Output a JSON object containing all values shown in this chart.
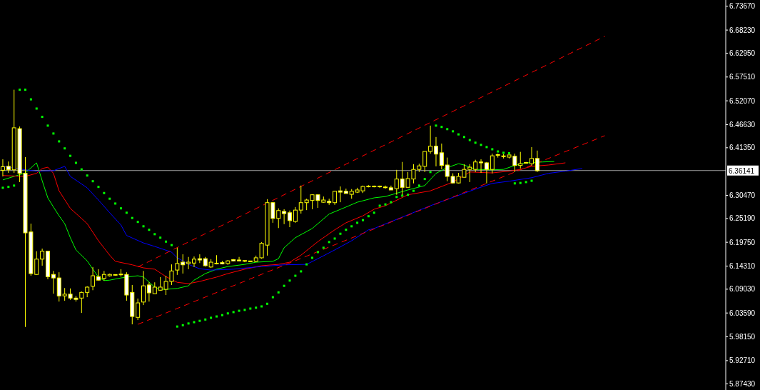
{
  "chart_data": {
    "type": "candlestick",
    "color": "#ffff00",
    "tick_labels": "y",
    "categories": [
      null,
      null,
      null,
      null,
      null,
      null,
      null,
      null,
      null,
      null,
      null,
      null,
      null,
      null,
      null,
      null,
      null,
      null,
      null,
      null,
      null,
      null,
      null,
      null,
      null,
      null,
      null,
      null,
      null,
      null,
      null,
      null,
      null,
      null,
      null,
      null,
      null,
      null,
      null,
      null,
      null,
      null,
      null,
      null,
      null,
      null,
      null,
      null,
      null,
      null,
      null,
      null,
      null,
      null,
      null,
      null,
      null,
      null,
      null,
      null,
      null,
      null,
      null,
      null,
      null,
      null,
      null,
      null,
      null,
      null,
      null,
      null,
      null,
      null,
      null,
      null,
      null,
      null,
      null,
      null,
      null,
      null,
      null,
      null,
      null,
      null,
      null,
      null,
      null,
      null,
      null,
      null,
      null,
      null,
      null,
      null,
      null,
      null,
      null,
      null,
      null,
      null,
      null,
      null,
      null,
      null,
      null,
      null,
      null,
      null,
      null,
      null,
      null,
      null,
      null,
      null,
      null,
      null,
      null,
      null,
      null,
      null,
      null,
      null,
      null,
      null,
      null,
      null,
      null
    ],
    "ohlc": [
      [
        6.362,
        6.387,
        6.348,
        6.37
      ],
      [
        6.371,
        6.382,
        6.356,
        6.363
      ],
      [
        6.363,
        6.546,
        6.356,
        6.459
      ],
      [
        6.457,
        6.462,
        6.335,
        6.355
      ],
      [
        6.355,
        6.392,
        6.004,
        6.219
      ],
      [
        6.221,
        6.24,
        6.121,
        6.126
      ],
      [
        6.124,
        6.177,
        6.123,
        6.159
      ],
      [
        6.159,
        6.183,
        6.144,
        6.177
      ],
      [
        6.177,
        6.177,
        6.113,
        6.119
      ],
      [
        6.124,
        6.132,
        6.08,
        6.116
      ],
      [
        6.116,
        6.129,
        6.062,
        6.075
      ],
      [
        6.075,
        6.093,
        6.064,
        6.079
      ],
      [
        6.079,
        6.092,
        6.066,
        6.07
      ],
      [
        6.07,
        6.075,
        6.062,
        6.067
      ],
      [
        6.07,
        6.085,
        6.036,
        6.083
      ],
      [
        6.083,
        6.097,
        6.072,
        6.095
      ],
      [
        6.097,
        6.141,
        6.088,
        6.121
      ],
      [
        6.119,
        6.136,
        6.11,
        6.111
      ],
      [
        6.115,
        6.132,
        6.11,
        6.124
      ],
      [
        6.121,
        6.126,
        6.119,
        6.124
      ],
      [
        6.123,
        6.124,
        6.121,
        6.123
      ],
      [
        6.124,
        6.136,
        6.119,
        6.124
      ],
      [
        6.124,
        6.129,
        6.064,
        6.077
      ],
      [
        6.083,
        6.1,
        6.01,
        6.028
      ],
      [
        6.026,
        6.069,
        6.02,
        6.059
      ],
      [
        6.061,
        6.132,
        6.054,
        6.098
      ],
      [
        6.1,
        6.106,
        6.062,
        6.082
      ],
      [
        6.08,
        6.106,
        6.08,
        6.095
      ],
      [
        6.088,
        6.118,
        6.087,
        6.095
      ],
      [
        6.09,
        6.121,
        6.077,
        6.108
      ],
      [
        6.108,
        6.147,
        6.1,
        6.132
      ],
      [
        6.134,
        6.185,
        6.123,
        6.149
      ],
      [
        6.152,
        6.17,
        6.126,
        6.146
      ],
      [
        6.149,
        6.164,
        6.136,
        6.152
      ],
      [
        6.15,
        6.165,
        6.141,
        6.159
      ],
      [
        6.16,
        6.17,
        6.15,
        6.157
      ],
      [
        6.16,
        6.164,
        6.142,
        6.144
      ],
      [
        6.141,
        6.159,
        6.139,
        6.152
      ],
      [
        6.149,
        6.168,
        6.147,
        6.149
      ],
      [
        6.151,
        6.155,
        6.147,
        6.148
      ],
      [
        6.149,
        6.157,
        6.146,
        6.155
      ],
      [
        6.158,
        6.159,
        6.154,
        6.155
      ],
      [
        6.157,
        6.164,
        6.154,
        6.155
      ],
      [
        6.155,
        6.156,
        6.152,
        6.155
      ],
      [
        6.154,
        6.155,
        6.152,
        6.154
      ],
      [
        6.154,
        6.167,
        6.152,
        6.162
      ],
      [
        6.162,
        6.198,
        6.16,
        6.195
      ],
      [
        6.191,
        6.296,
        6.167,
        6.288
      ],
      [
        6.288,
        6.289,
        6.242,
        6.252
      ],
      [
        6.252,
        6.275,
        6.23,
        6.27
      ],
      [
        6.268,
        6.273,
        6.239,
        6.263
      ],
      [
        6.265,
        6.27,
        6.232,
        6.247
      ],
      [
        6.245,
        6.278,
        6.242,
        6.271
      ],
      [
        6.271,
        6.327,
        6.263,
        6.288
      ],
      [
        6.288,
        6.297,
        6.271,
        6.294
      ],
      [
        6.293,
        6.307,
        6.273,
        6.306
      ],
      [
        6.306,
        6.307,
        6.276,
        6.293
      ],
      [
        6.289,
        6.302,
        6.288,
        6.294
      ],
      [
        6.291,
        6.297,
        6.283,
        6.288
      ],
      [
        6.288,
        6.315,
        6.283,
        6.314
      ],
      [
        6.315,
        6.325,
        6.289,
        6.312
      ],
      [
        6.314,
        6.32,
        6.309,
        6.309
      ],
      [
        6.307,
        6.319,
        6.297,
        6.314
      ],
      [
        6.312,
        6.322,
        6.31,
        6.317
      ],
      [
        6.315,
        6.327,
        6.31,
        6.325
      ],
      [
        6.325,
        6.328,
        6.323,
        6.325
      ],
      [
        6.325,
        6.327,
        6.323,
        6.325
      ],
      [
        6.325,
        6.327,
        6.322,
        6.325
      ],
      [
        6.323,
        6.327,
        6.32,
        6.323
      ],
      [
        6.322,
        6.327,
        6.317,
        6.317
      ],
      [
        6.32,
        6.363,
        6.306,
        6.342
      ],
      [
        6.342,
        6.381,
        6.306,
        6.323
      ],
      [
        6.323,
        6.358,
        6.323,
        6.343
      ],
      [
        6.342,
        6.376,
        6.332,
        6.364
      ],
      [
        6.364,
        6.377,
        6.358,
        6.372
      ],
      [
        6.371,
        6.405,
        6.358,
        6.405
      ],
      [
        6.405,
        6.464,
        6.4,
        6.417
      ],
      [
        6.417,
        6.438,
        6.371,
        6.399
      ],
      [
        6.402,
        6.423,
        6.364,
        6.373
      ],
      [
        6.374,
        6.391,
        6.337,
        6.348
      ],
      [
        6.348,
        6.355,
        6.332,
        6.333
      ],
      [
        6.333,
        6.356,
        6.332,
        6.348
      ],
      [
        6.346,
        6.376,
        6.346,
        6.364
      ],
      [
        6.364,
        6.376,
        6.335,
        6.369
      ],
      [
        6.364,
        6.386,
        6.358,
        6.381
      ],
      [
        6.381,
        6.387,
        6.356,
        6.379
      ],
      [
        6.379,
        6.381,
        6.332,
        6.364
      ],
      [
        6.364,
        6.4,
        6.355,
        6.395
      ],
      [
        6.397,
        6.4,
        6.391,
        6.397
      ],
      [
        6.394,
        6.399,
        6.389,
        6.394
      ],
      [
        6.392,
        6.397,
        6.389,
        6.397
      ],
      [
        6.394,
        6.4,
        6.358,
        6.373
      ],
      [
        6.373,
        6.404,
        6.366,
        6.377
      ],
      [
        6.379,
        6.381,
        6.377,
        6.379
      ],
      [
        6.377,
        6.415,
        6.373,
        6.389
      ],
      [
        6.389,
        6.407,
        6.358,
        6.361
      ],
      null,
      null,
      null,
      null,
      null,
      null,
      null,
      null,
      null,
      null,
      null,
      null,
      null,
      null,
      null,
      null,
      null,
      null,
      null,
      null,
      null,
      null,
      null,
      null,
      null,
      null,
      null,
      null,
      null,
      null,
      null,
      null,
      null
    ],
    "series": [
      {
        "type": "line",
        "color": "#00ff00",
        "values": [
          6.34,
          null,
          null,
          null,
          6.356,
          null,
          6.379,
          6.338,
          6.299,
          6.278,
          6.258,
          6.24,
          6.208,
          6.18,
          null,
          6.155,
          6.136,
          6.118,
          6.11,
          6.111,
          null,
          6.116,
          6.118,
          null,
          6.121,
          6.118,
          null,
          6.095,
          6.09,
          6.09,
          null,
          6.092,
          null,
          6.098,
          6.111,
          null,
          6.126,
          null,
          6.136,
          null,
          6.142,
          null,
          null,
          6.147,
          null,
          6.152,
          null,
          null,
          6.154,
          6.16,
          6.185,
          null,
          6.208,
          null,
          null,
          6.229,
          null,
          null,
          6.262,
          null,
          null,
          6.278,
          null,
          6.289,
          null,
          null,
          6.299,
          null,
          6.302,
          null,
          null,
          null,
          6.317,
          null,
          null,
          6.327,
          null,
          6.355,
          null,
          6.368,
          null,
          6.377,
          6.374,
          null,
          6.364,
          null,
          null,
          6.363,
          null,
          6.364,
          null,
          6.373,
          null,
          6.379,
          null,
          null,
          6.381,
          null,
          6.382,
          null,
          null,
          null,
          null,
          null,
          null,
          null,
          null,
          null,
          null,
          null,
          null,
          null,
          null,
          null,
          null,
          null,
          null,
          null,
          null,
          null,
          null,
          null,
          null,
          null,
          null,
          null,
          null,
          null,
          null
        ]
      },
      {
        "type": "line",
        "color": "#ff0000",
        "values": [
          6.35,
          null,
          null,
          null,
          6.348,
          null,
          6.355,
          6.366,
          6.369,
          6.355,
          6.315,
          null,
          6.275,
          null,
          null,
          6.24,
          null,
          6.201,
          null,
          6.168,
          6.154,
          null,
          null,
          6.146,
          null,
          6.139,
          null,
          6.136,
          null,
          6.119,
          null,
          6.106,
          null,
          6.103,
          null,
          6.108,
          null,
          null,
          6.118,
          null,
          6.126,
          null,
          null,
          6.136,
          null,
          null,
          6.144,
          null,
          null,
          6.147,
          null,
          6.152,
          null,
          6.168,
          null,
          null,
          6.199,
          null,
          null,
          6.226,
          null,
          6.242,
          null,
          null,
          6.258,
          null,
          6.273,
          null,
          6.281,
          null,
          null,
          null,
          6.306,
          null,
          null,
          null,
          6.315,
          null,
          null,
          null,
          6.335,
          null,
          6.35,
          6.358,
          null,
          null,
          null,
          6.356,
          null,
          null,
          6.36,
          null,
          6.364,
          null,
          6.371,
          null,
          null,
          6.374,
          null,
          null,
          6.379,
          null,
          null,
          null,
          null,
          null,
          null,
          null,
          null,
          null,
          null,
          null,
          null,
          null,
          null,
          null,
          null,
          null,
          null,
          null,
          null,
          null,
          null,
          null,
          null,
          null,
          null,
          null,
          null
        ]
      },
      {
        "type": "line",
        "color": "#0000ff",
        "values": [
          6.371,
          null,
          null,
          null,
          6.363,
          null,
          6.36,
          null,
          null,
          6.361,
          null,
          6.371,
          6.348,
          null,
          null,
          6.322,
          null,
          6.294,
          null,
          6.265,
          null,
          6.237,
          6.213,
          null,
          null,
          6.196,
          null,
          6.188,
          null,
          null,
          6.175,
          6.162,
          6.155,
          6.147,
          null,
          6.137,
          null,
          6.134,
          null,
          null,
          null,
          6.136,
          null,
          null,
          null,
          6.141,
          null,
          null,
          null,
          null,
          6.146,
          null,
          null,
          null,
          6.147,
          null,
          6.16,
          null,
          null,
          6.18,
          null,
          null,
          6.201,
          null,
          null,
          6.226,
          6.229,
          null,
          null,
          null,
          null,
          null,
          null,
          null,
          null,
          null,
          6.281,
          null,
          null,
          null,
          null,
          null,
          null,
          null,
          6.319,
          null,
          null,
          6.332,
          null,
          null,
          6.337,
          null,
          null,
          null,
          6.345,
          null,
          null,
          6.355,
          null,
          null,
          6.36,
          null,
          null,
          6.366,
          null,
          null,
          null,
          null,
          null,
          null,
          null,
          null,
          null,
          null,
          null,
          null,
          null,
          null,
          null,
          null,
          null,
          null,
          null,
          null,
          null,
          null,
          null,
          null,
          null
        ]
      },
      {
        "type": "scatter",
        "color": "#00ff00",
        "marker": "square",
        "values": [
          6.322,
          6.324,
          6.327,
          6.546,
          6.546,
          6.524,
          6.503,
          6.484,
          6.464,
          6.446,
          6.428,
          6.412,
          6.395,
          6.379,
          6.364,
          6.35,
          6.337,
          6.324,
          6.31,
          6.297,
          6.286,
          6.275,
          6.265,
          6.253,
          6.244,
          6.234,
          6.226,
          6.216,
          6.208,
          6.199,
          6.191,
          6.005,
          6.008,
          6.012,
          6.015,
          6.018,
          6.021,
          6.025,
          6.028,
          6.031,
          6.035,
          6.038,
          6.041,
          6.043,
          6.046,
          6.048,
          6.051,
          6.057,
          6.072,
          6.083,
          6.098,
          6.11,
          6.121,
          6.131,
          6.147,
          6.162,
          6.175,
          6.185,
          6.198,
          6.206,
          6.217,
          6.226,
          6.234,
          6.242,
          6.248,
          6.257,
          6.265,
          6.281,
          6.284,
          6.289,
          6.301,
          6.304,
          6.306,
          6.315,
          6.327,
          6.342,
          6.358,
          6.464,
          6.461,
          6.456,
          6.451,
          6.444,
          6.438,
          6.431,
          6.425,
          6.42,
          6.415,
          6.41,
          6.405,
          6.402,
          6.401,
          6.332,
          6.333,
          6.335,
          6.338,
          null,
          null,
          null,
          null,
          null,
          null,
          null,
          null,
          null,
          null,
          null,
          null,
          null,
          null,
          null,
          null,
          null,
          null,
          null,
          null,
          null,
          null,
          null,
          null,
          null,
          null,
          null,
          null,
          null,
          null,
          null,
          null,
          null,
          null
        ]
      },
      {
        "type": "line",
        "color": "#ff0000",
        "line_style": "dashed",
        "values": [
          null,
          null,
          null,
          null,
          null,
          null,
          null,
          null,
          null,
          null,
          null,
          null,
          null,
          null,
          null,
          null,
          null,
          null,
          null,
          null,
          null,
          null,
          null,
          null,
          6.141,
          null,
          null,
          null,
          null,
          null,
          null,
          null,
          null,
          null,
          null,
          null,
          null,
          null,
          null,
          null,
          null,
          null,
          null,
          null,
          null,
          null,
          null,
          null,
          null,
          null,
          null,
          null,
          null,
          null,
          null,
          null,
          null,
          null,
          null,
          null,
          null,
          null,
          null,
          null,
          null,
          null,
          null,
          null,
          null,
          null,
          null,
          null,
          null,
          null,
          null,
          null,
          null,
          null,
          null,
          null,
          null,
          null,
          null,
          null,
          null,
          null,
          null,
          null,
          null,
          null,
          null,
          null,
          null,
          null,
          null,
          null,
          null,
          null,
          null,
          null,
          null,
          null,
          null,
          null,
          null,
          null,
          null,
          6.668,
          null,
          null,
          null,
          null,
          null,
          null,
          null,
          null,
          null,
          null,
          null,
          null,
          null,
          null,
          null,
          null,
          null,
          null,
          null,
          null,
          null
        ]
      },
      {
        "type": "line",
        "color": "#ff0000",
        "line_style": "dashed",
        "values": [
          null,
          null,
          null,
          null,
          null,
          null,
          null,
          null,
          null,
          null,
          null,
          null,
          null,
          null,
          null,
          null,
          null,
          null,
          null,
          null,
          null,
          null,
          null,
          null,
          6.01,
          null,
          null,
          null,
          null,
          null,
          null,
          null,
          null,
          null,
          null,
          null,
          null,
          null,
          null,
          null,
          null,
          null,
          null,
          null,
          null,
          null,
          null,
          null,
          null,
          null,
          null,
          null,
          null,
          null,
          null,
          null,
          null,
          null,
          null,
          null,
          null,
          null,
          null,
          null,
          null,
          null,
          null,
          null,
          null,
          null,
          null,
          null,
          null,
          null,
          null,
          null,
          null,
          null,
          null,
          null,
          null,
          null,
          null,
          null,
          null,
          null,
          null,
          null,
          null,
          null,
          null,
          null,
          null,
          null,
          null,
          null,
          null,
          null,
          null,
          null,
          null,
          null,
          null,
          null,
          null,
          null,
          null,
          6.441,
          null,
          null,
          null,
          null,
          null,
          null,
          null,
          null,
          null,
          null,
          null,
          null,
          null,
          null,
          null,
          null,
          null,
          null,
          null,
          null,
          null
        ]
      }
    ],
    "ylim": [
      5.86,
      6.751
    ],
    "yticks": [
      {
        "value": 5.8743,
        "label": "5.87430"
      },
      {
        "value": 5.9271,
        "label": "5.92710"
      },
      {
        "value": 5.9815,
        "label": "5.98150"
      },
      {
        "value": 6.0359,
        "label": "6.03590"
      },
      {
        "value": 6.0903,
        "label": "6.09030"
      },
      {
        "value": 6.1431,
        "label": "6.14310"
      },
      {
        "value": 6.1975,
        "label": "6.19750"
      },
      {
        "value": 6.2519,
        "label": "6.25190"
      },
      {
        "value": 6.3047,
        "label": "6.30470"
      },
      {
        "value": 6.4135,
        "label": "6.41350"
      },
      {
        "value": 6.4663,
        "label": "6.46630"
      },
      {
        "value": 6.5207,
        "label": "6.52070"
      },
      {
        "value": 6.5751,
        "label": "6.57510"
      },
      {
        "value": 6.6295,
        "label": "6.62950"
      },
      {
        "value": 6.6823,
        "label": "6.68230"
      },
      {
        "value": 6.7367,
        "label": "6.73670"
      }
    ],
    "ref_lines": [
      {
        "axis": "y",
        "value": 6.36141,
        "label": "6.36141",
        "color": "#a0a0a0"
      }
    ]
  }
}
